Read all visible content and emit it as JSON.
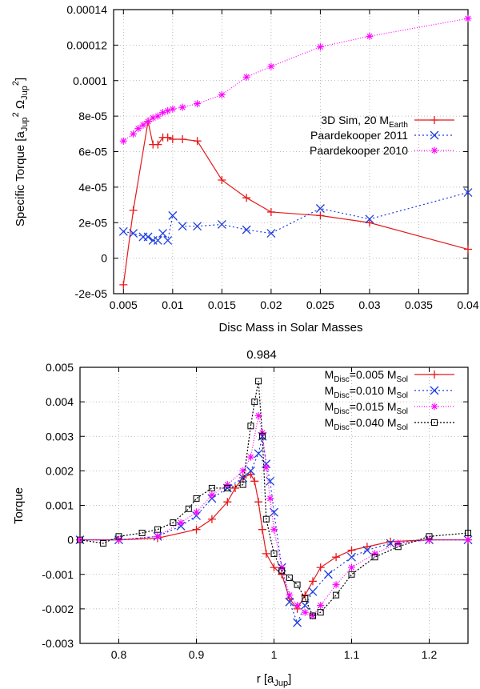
{
  "chart_data": [
    {
      "type": "line",
      "xlabel": "Disc Mass in Solar Masses",
      "ylabel_parts": {
        "base": "Specific Torque [a",
        "sub1": "Jup",
        "sup1": "2",
        "mid": " Ω",
        "sub2": "Jup",
        "sup2": "2",
        "end": "]"
      },
      "xlim": [
        0.004,
        0.04
      ],
      "ylim": [
        -2e-05,
        0.00014
      ],
      "grid": true,
      "legend_position": "right",
      "xticks": [
        0.005,
        0.01,
        0.015,
        0.02,
        0.025,
        0.03,
        0.035,
        0.04
      ],
      "xtick_labels": [
        "0.005",
        "0.01",
        "0.015",
        "0.02",
        "0.025",
        "0.03",
        "0.035",
        "0.04"
      ],
      "yticks": [
        -2e-05,
        0,
        2e-05,
        4e-05,
        6e-05,
        8e-05,
        0.0001,
        0.00012,
        0.00014
      ],
      "ytick_labels": [
        "-2e-05",
        "0",
        "2e-05",
        "4e-05",
        "6e-05",
        "8e-05",
        "0.0001",
        "0.00012",
        "0.00014"
      ],
      "series": [
        {
          "name": "3D Sim, 20 M",
          "name_sub": "Earth",
          "color": "#e41a1c",
          "dash": "",
          "marker": "plus",
          "x": [
            0.005,
            0.006,
            0.0075,
            0.008,
            0.0085,
            0.009,
            0.0095,
            0.01,
            0.011,
            0.0125,
            0.015,
            0.0175,
            0.02,
            0.025,
            0.03,
            0.04
          ],
          "y": [
            -1.5e-05,
            2.7e-05,
            7.7e-05,
            6.4e-05,
            6.4e-05,
            6.8e-05,
            6.8e-05,
            6.7e-05,
            6.7e-05,
            6.6e-05,
            4.4e-05,
            3.4e-05,
            2.6e-05,
            2.4e-05,
            2e-05,
            5e-06
          ]
        },
        {
          "name": "Paardekooper 2011",
          "color": "#1f3fe0",
          "dash": "2,3",
          "marker": "x",
          "x": [
            0.005,
            0.006,
            0.007,
            0.0075,
            0.008,
            0.0085,
            0.009,
            0.0095,
            0.01,
            0.011,
            0.0125,
            0.015,
            0.0175,
            0.02,
            0.025,
            0.03,
            0.04
          ],
          "y": [
            1.5e-05,
            1.4e-05,
            1.2e-05,
            1.2e-05,
            1e-05,
            1e-05,
            1.4e-05,
            1e-05,
            2.4e-05,
            1.8e-05,
            1.8e-05,
            1.9e-05,
            1.6e-05,
            1.4e-05,
            2.8e-05,
            2.2e-05,
            3.7e-05
          ]
        },
        {
          "name": "Paardekooper 2010",
          "color": "#ff00ff",
          "dash": "1,2",
          "marker": "star",
          "x": [
            0.005,
            0.006,
            0.0065,
            0.007,
            0.0075,
            0.008,
            0.0085,
            0.009,
            0.0095,
            0.01,
            0.011,
            0.0125,
            0.015,
            0.0175,
            0.02,
            0.025,
            0.03,
            0.04
          ],
          "y": [
            6.6e-05,
            7e-05,
            7.3e-05,
            7.5e-05,
            7.7e-05,
            7.9e-05,
            8e-05,
            8.2e-05,
            8.3e-05,
            8.4e-05,
            8.5e-05,
            8.7e-05,
            9.2e-05,
            0.000102,
            0.000108,
            0.000119,
            0.000125,
            0.000135
          ]
        }
      ]
    },
    {
      "type": "line",
      "title": "0.984",
      "xlabel_parts": {
        "base": "r [a",
        "sub": "Jup",
        "end": "]"
      },
      "ylabel": "Torque",
      "xlim": [
        0.75,
        1.25
      ],
      "ylim": [
        -0.003,
        0.005
      ],
      "grid": true,
      "legend_position": "top-right",
      "xticks": [
        0.8,
        0.9,
        1.0,
        1.1,
        1.2
      ],
      "xtick_labels": [
        "0.8",
        "0.9",
        "1",
        "1.1",
        "1.2"
      ],
      "yticks": [
        -0.003,
        -0.002,
        -0.001,
        0,
        0.001,
        0.002,
        0.003,
        0.004,
        0.005
      ],
      "ytick_labels": [
        "-0.003",
        "-0.002",
        "-0.001",
        "0",
        "0.001",
        "0.002",
        "0.003",
        "0.004",
        "0.005"
      ],
      "series": [
        {
          "label_parts": {
            "a": "M",
            "a_sub": "Disc",
            "b": "=0.005 M",
            "b_sub": "Sol"
          },
          "color": "#e41a1c",
          "dash": "",
          "marker": "plus",
          "x": [
            0.75,
            0.8,
            0.85,
            0.9,
            0.92,
            0.94,
            0.95,
            0.96,
            0.97,
            0.975,
            0.98,
            0.985,
            0.99,
            1.0,
            1.01,
            1.02,
            1.03,
            1.04,
            1.05,
            1.06,
            1.08,
            1.1,
            1.12,
            1.15,
            1.2,
            1.25
          ],
          "x_step_note": "",
          "y": [
            0,
            0,
            5e-05,
            0.0003,
            0.0006,
            0.0011,
            0.0015,
            0.0018,
            0.0019,
            0.0017,
            0.0011,
            0.0003,
            -0.0004,
            -0.0008,
            -0.001,
            -0.0017,
            -0.002,
            -0.0016,
            -0.0012,
            -0.0008,
            -0.0005,
            -0.0003,
            -0.0002,
            -5e-05,
            0,
            0
          ]
        },
        {
          "label_parts": {
            "a": "M",
            "a_sub": "Disc",
            "b": "=0.010 M",
            "b_sub": "Sol"
          },
          "color": "#1f3fe0",
          "dash": "2,3",
          "marker": "x",
          "x": [
            0.75,
            0.8,
            0.85,
            0.88,
            0.9,
            0.92,
            0.94,
            0.96,
            0.97,
            0.98,
            0.985,
            0.99,
            0.995,
            1.0,
            1.01,
            1.02,
            1.03,
            1.04,
            1.05,
            1.07,
            1.1,
            1.12,
            1.15,
            1.2,
            1.25
          ],
          "y": [
            0,
            0,
            0.0001,
            0.0004,
            0.0007,
            0.0012,
            0.0015,
            0.0018,
            0.002,
            0.0025,
            0.003,
            0.0022,
            0.0017,
            0.0008,
            -0.0008,
            -0.0018,
            -0.0024,
            -0.0019,
            -0.0015,
            -0.001,
            -0.0005,
            -0.0003,
            -0.0001,
            0,
            0
          ]
        },
        {
          "label_parts": {
            "a": "M",
            "a_sub": "Disc",
            "b": "=0.015 M",
            "b_sub": "Sol"
          },
          "color": "#ff00ff",
          "dash": "1,2",
          "marker": "star",
          "x": [
            0.75,
            0.8,
            0.85,
            0.88,
            0.9,
            0.92,
            0.94,
            0.96,
            0.97,
            0.98,
            0.985,
            0.99,
            0.995,
            1.0,
            1.01,
            1.02,
            1.03,
            1.04,
            1.05,
            1.06,
            1.08,
            1.1,
            1.13,
            1.16,
            1.2,
            1.25
          ],
          "y": [
            0,
            0,
            0.0001,
            0.0005,
            0.0008,
            0.0013,
            0.0016,
            0.002,
            0.0024,
            0.0036,
            0.0031,
            0.0021,
            0.0012,
            0.0003,
            -0.0008,
            -0.0016,
            -0.0019,
            -0.0021,
            -0.0022,
            -0.0019,
            -0.0013,
            -0.0008,
            -0.0004,
            -0.0001,
            0,
            0
          ]
        },
        {
          "label_parts": {
            "a": "M",
            "a_sub": "Disc",
            "b": "=0.040 M",
            "b_sub": "Sol"
          },
          "color": "#000000",
          "dash": "2,2",
          "marker": "square",
          "x": [
            0.75,
            0.78,
            0.8,
            0.83,
            0.85,
            0.87,
            0.89,
            0.9,
            0.92,
            0.94,
            0.96,
            0.97,
            0.975,
            0.98,
            0.985,
            0.99,
            1.0,
            1.01,
            1.02,
            1.03,
            1.04,
            1.05,
            1.06,
            1.08,
            1.1,
            1.13,
            1.16,
            1.2,
            1.25
          ],
          "y": [
            0,
            -0.0001,
            0.0001,
            0.0002,
            0.0003,
            0.0005,
            0.0009,
            0.0012,
            0.0015,
            0.0015,
            0.0016,
            0.0033,
            0.004,
            0.0046,
            0.003,
            0.0006,
            -0.0004,
            -0.0009,
            -0.0011,
            -0.0013,
            -0.0017,
            -0.0022,
            -0.0021,
            -0.0016,
            -0.001,
            -0.0005,
            -0.0002,
            0.0001,
            0.0002
          ]
        }
      ]
    }
  ]
}
